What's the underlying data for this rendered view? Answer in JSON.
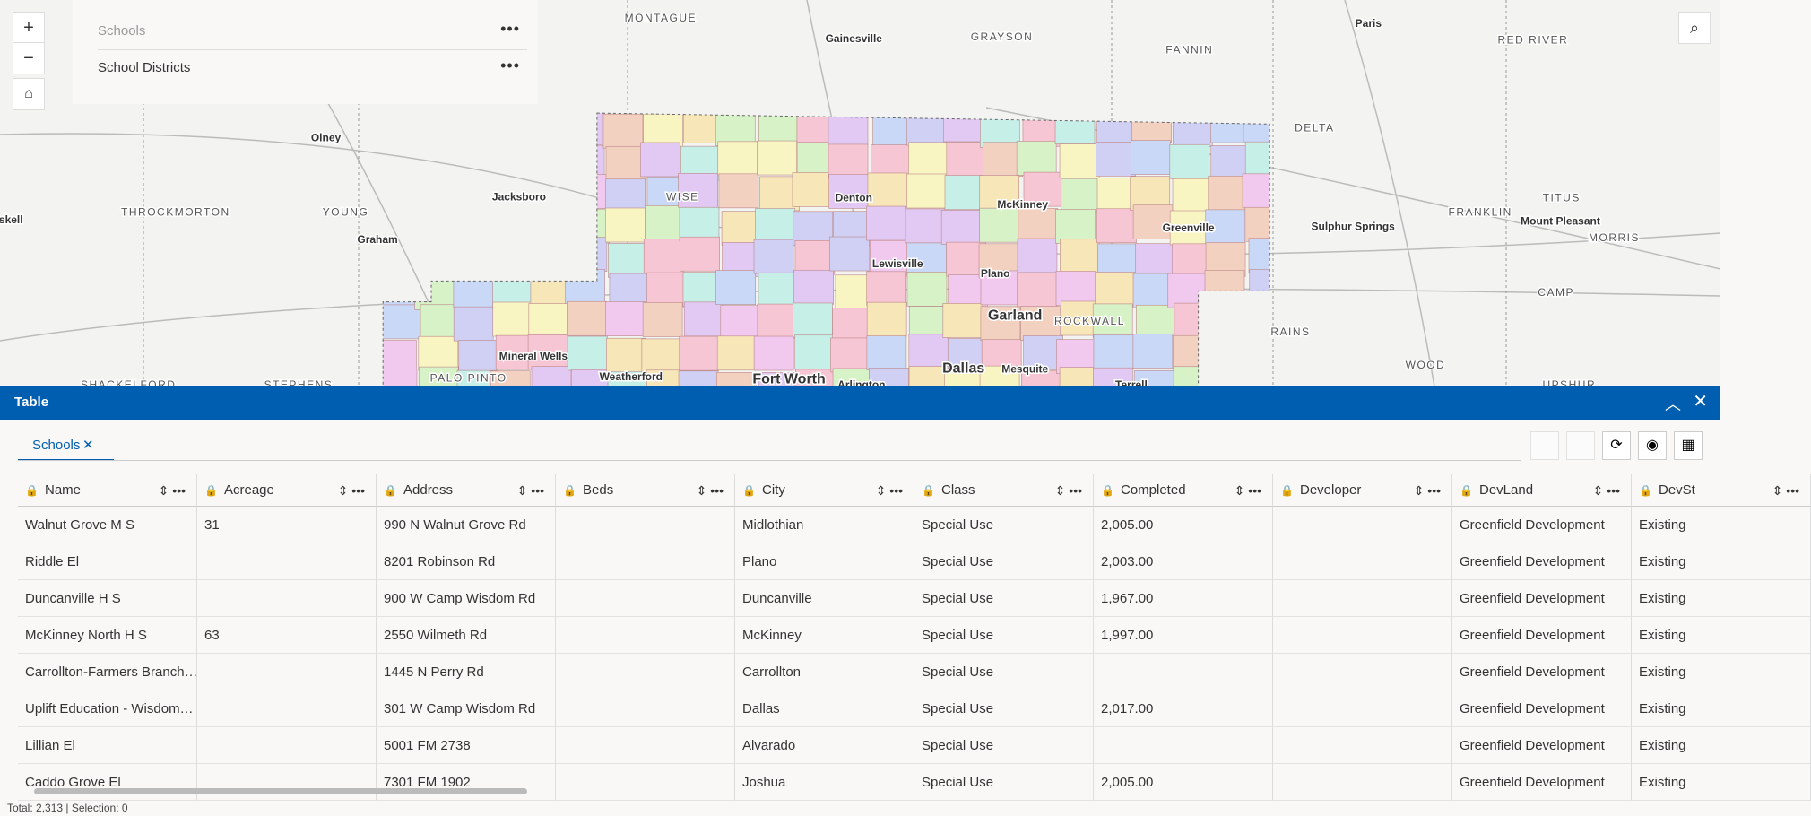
{
  "map": {
    "layers": [
      "Schools",
      "School Districts"
    ],
    "labels": [
      "MONTAGUE",
      "Gainesville",
      "GRAYSON",
      "FANNIN",
      "RED RIVER",
      "Paris",
      "DELTA",
      "Olney",
      "THROCKMORTON",
      "YOUNG",
      "Graham",
      "Jacksboro",
      "WISE",
      "Denton",
      "McKinney",
      "Greenville",
      "Sulphur Springs",
      "FRANKLIN",
      "TITUS",
      "Mount Pleasant",
      "MORRIS",
      "CAMP",
      "Lewisville",
      "Plano",
      "Garland",
      "ROCKWALL",
      "RAINS",
      "WOOD",
      "Mineral Wells",
      "Weatherford",
      "PALO PINTO",
      "Fort Worth",
      "Arlington",
      "Dallas",
      "Mesquite",
      "Terrell",
      "SHACKELFORD",
      "STEPHENS",
      "UPSHUR",
      "skell"
    ]
  },
  "table": {
    "title": "Table",
    "tabs": [
      "Schools"
    ],
    "columns": [
      "Name",
      "Acreage",
      "Address",
      "Beds",
      "City",
      "Class",
      "Completed",
      "Developer",
      "DevLand",
      "DevSt"
    ],
    "rows": [
      [
        "Walnut Grove M S",
        31,
        "990 N Walnut Grove Rd",
        null,
        "Midlothian",
        "Special Use",
        "2,005.00",
        null,
        "Greenfield Development",
        "Existing"
      ],
      [
        "Riddle El",
        null,
        "8201 Robinson Rd",
        null,
        "Plano",
        "Special Use",
        "2,003.00",
        null,
        "Greenfield Development",
        "Existing"
      ],
      [
        "Duncanville H S",
        null,
        "900 W Camp Wisdom Rd",
        null,
        "Duncanville",
        "Special Use",
        "1,967.00",
        null,
        "Greenfield Development",
        "Existing"
      ],
      [
        "McKinney North H S",
        63,
        "2550 Wilmeth Rd",
        null,
        "McKinney",
        "Special Use",
        "1,997.00",
        null,
        "Greenfield Development",
        "Existing"
      ],
      [
        "Carrollton-Farmers Branch…",
        null,
        "1445 N Perry Rd",
        null,
        "Carrollton",
        "Special Use",
        null,
        null,
        "Greenfield Development",
        "Existing"
      ],
      [
        "Uplift Education - Wisdom…",
        null,
        "301 W Camp Wisdom Rd",
        null,
        "Dallas",
        "Special Use",
        "2,017.00",
        null,
        "Greenfield Development",
        "Existing"
      ],
      [
        "Lillian El",
        null,
        "5001 FM 2738",
        null,
        "Alvarado",
        "Special Use",
        null,
        null,
        "Greenfield Development",
        "Existing"
      ],
      [
        "Caddo Grove El",
        null,
        "7301 FM 1902",
        null,
        "Joshua",
        "Special Use",
        "2,005.00",
        null,
        "Greenfield Development",
        "Existing"
      ]
    ],
    "footer": "Total: 2,313 | Selection: 0"
  }
}
